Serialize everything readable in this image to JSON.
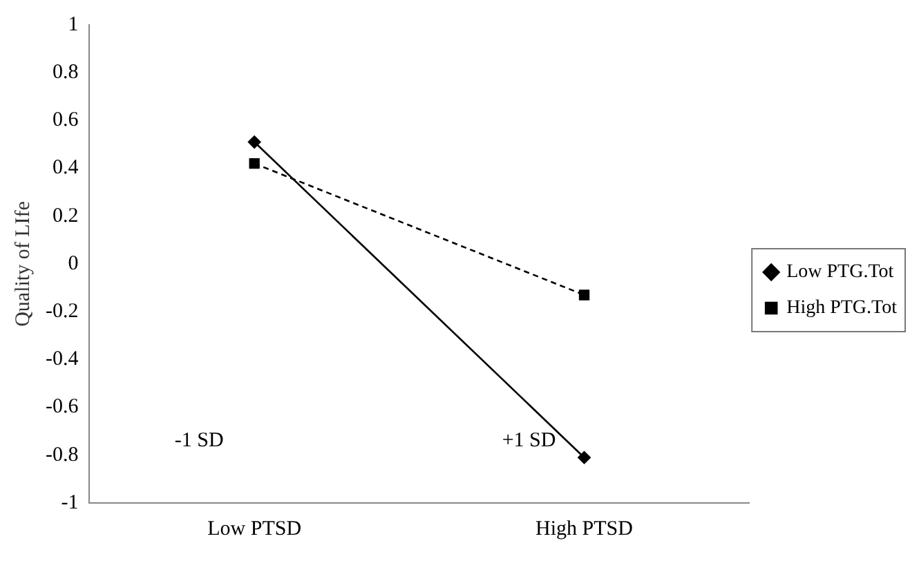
{
  "chart_data": {
    "type": "line",
    "ylabel": "Quality of LIfe",
    "categories": [
      "Low PTSD",
      "High PTSD"
    ],
    "series": [
      {
        "name": "Low PTG.Tot",
        "color": "#000000",
        "values": [
          0.51,
          -0.81
        ],
        "marker": "diamond",
        "line_style": "solid"
      },
      {
        "name": "High PTG.Tot",
        "color": "#000000",
        "values": [
          0.42,
          -0.13
        ],
        "marker": "square",
        "line_style": "dashed"
      }
    ],
    "ylim": [
      -1,
      1
    ],
    "yticks": [
      -1,
      -0.8,
      -0.6,
      -0.4,
      -0.2,
      0,
      0.2,
      0.4,
      0.6,
      0.8,
      1
    ],
    "grid": false,
    "legend": "right",
    "annotations": [
      "-1 SD",
      "+1 SD"
    ]
  }
}
